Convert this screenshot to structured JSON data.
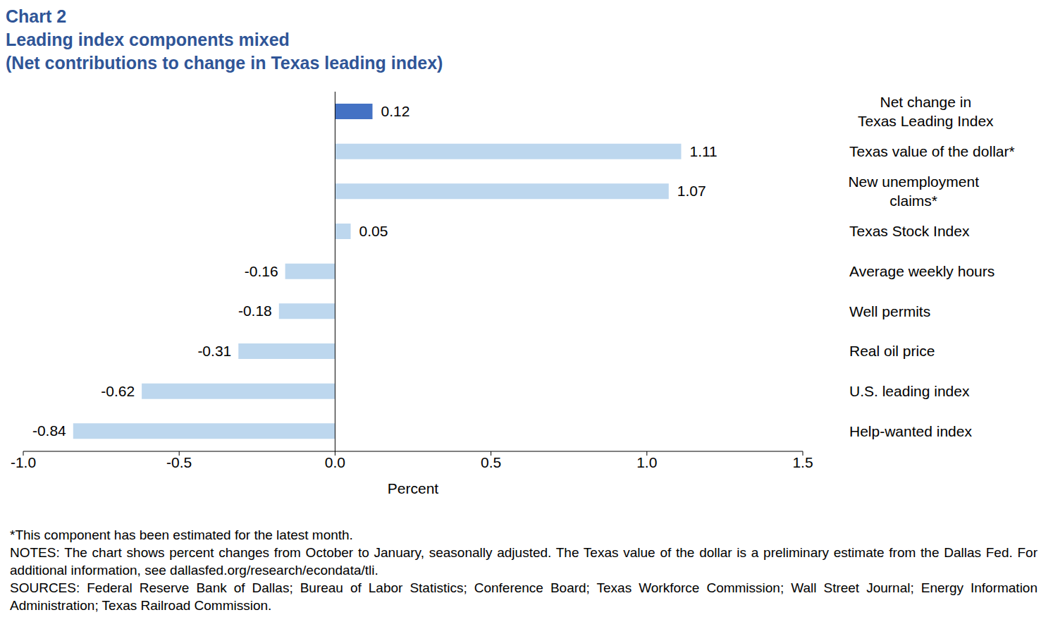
{
  "chart_data": {
    "type": "bar",
    "orientation": "horizontal",
    "label": "Chart 2",
    "title": "Leading index components mixed",
    "subtitle": "(Net contributions to change in Texas leading index)",
    "categories": [
      "Net change in\nTexas Leading Index",
      "Texas value of the dollar*",
      "New unemployment\nclaims*",
      "Texas Stock Index",
      "Average weekly hours",
      "Well permits",
      "Real oil price",
      "U.S. leading index",
      "Help-wanted index"
    ],
    "values": [
      0.12,
      1.11,
      1.07,
      0.05,
      -0.16,
      -0.18,
      -0.31,
      -0.62,
      -0.84
    ],
    "colors": [
      "#4472c4",
      "#bdd7ee",
      "#bdd7ee",
      "#bdd7ee",
      "#bdd7ee",
      "#bdd7ee",
      "#bdd7ee",
      "#bdd7ee",
      "#bdd7ee"
    ],
    "xlim": [
      -1,
      1.5
    ],
    "xticks": [
      {
        "value": -1,
        "label": "-1.0"
      },
      {
        "value": -0.5,
        "label": "-0.5"
      },
      {
        "value": 0,
        "label": "0.0"
      },
      {
        "value": 0.5,
        "label": "0.5"
      },
      {
        "value": 1,
        "label": "1.0"
      },
      {
        "value": 1.5,
        "label": "1.5"
      }
    ],
    "x_label": "Percent",
    "data_labels": true,
    "grid": false,
    "notes": [
      "*This component has been estimated for the latest month.",
      "NOTES: The chart shows percent changes from October to January, seasonally adjusted. The Texas value of the dollar is a preliminary estimate from the Dallas Fed. For additional information, see dallasfed.org/research/econdata/tli.",
      "SOURCES: Federal Reserve Bank of Dallas; Bureau of Labor Statistics; Conference Board; Texas Workforce Commission; Wall Street Journal; Energy Information Administration; Texas Railroad Commission."
    ]
  }
}
